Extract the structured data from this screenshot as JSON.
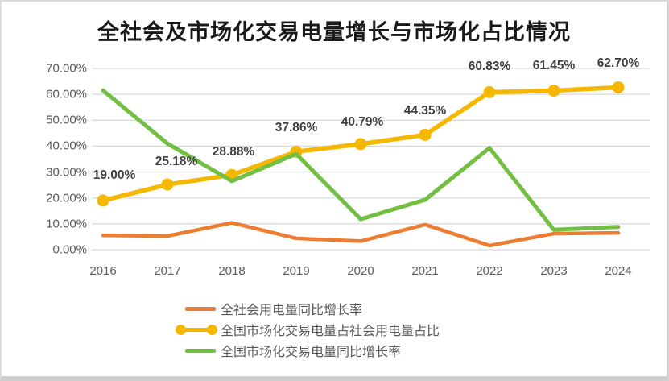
{
  "page": {
    "background": "#ffffff",
    "frame_color": "#d9d9d9"
  },
  "chart_data": {
    "type": "line",
    "title": "全社会及市场化交易电量增长与市场化占比情况",
    "categories": [
      "2016",
      "2017",
      "2018",
      "2019",
      "2020",
      "2021",
      "2022",
      "2023",
      "2024"
    ],
    "series": [
      {
        "name": "全社会用电量同比增长率",
        "color": "#ED7D31",
        "marker": false,
        "line_width": 4.5,
        "values": [
          5.5,
          5.3,
          10.4,
          4.4,
          3.3,
          9.7,
          1.6,
          6.2,
          6.5
        ]
      },
      {
        "name": "全国市场化交易电量占社会用电量占比",
        "color": "#F5B700",
        "marker": true,
        "line_width": 5.5,
        "values": [
          19.0,
          25.18,
          28.88,
          37.86,
          40.79,
          44.35,
          60.83,
          61.45,
          62.7
        ],
        "data_labels": [
          "19.00%",
          "25.18%",
          "28.88%",
          "37.86%",
          "40.79%",
          "44.35%",
          "60.83%",
          "61.45%",
          "62.70%"
        ]
      },
      {
        "name": "全国市场化交易电量同比增长率",
        "color": "#73BF44",
        "marker": false,
        "line_width": 5,
        "values": [
          61.5,
          41.0,
          26.5,
          37.0,
          11.8,
          19.3,
          39.3,
          7.7,
          8.8
        ]
      }
    ],
    "y_ticks": [
      "70.00%",
      "60.00%",
      "50.00%",
      "40.00%",
      "30.00%",
      "20.00%",
      "10.00%",
      "0.00%"
    ],
    "ylim": [
      0,
      70
    ],
    "grid": true,
    "grid_color": "#d9d9d9",
    "tick_color": "#595959",
    "data_label_color": "#404040",
    "legend_position": "bottom-left"
  }
}
